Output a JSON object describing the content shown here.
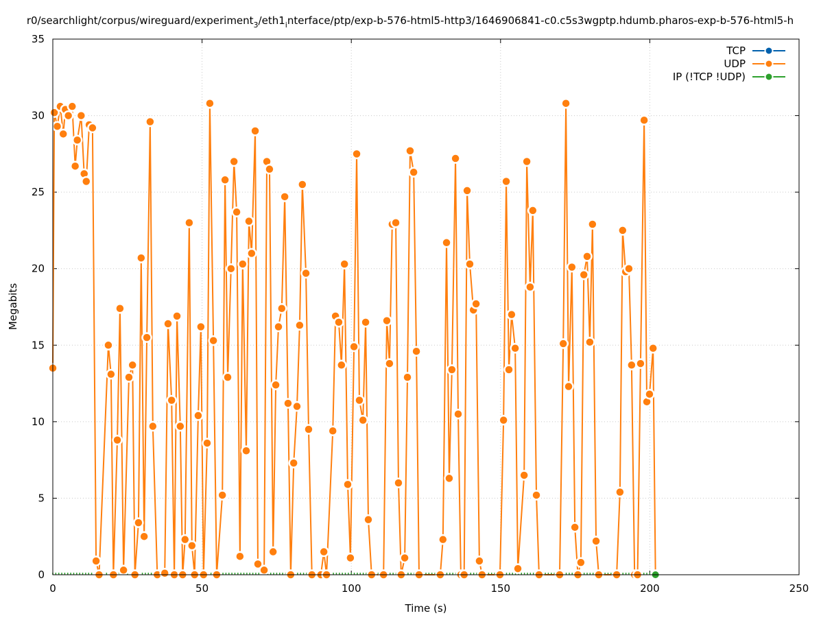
{
  "chart_data": {
    "type": "line",
    "title_parts": [
      "r0/searchlight/corpus/wireguard/experiment",
      "3",
      "/eth1",
      "i",
      "nterface/ptp/exp-b-576-html5-http3/1646906841-c0.c5s3wgptp.hdumb.pharos-exp-b-576-html5-h"
    ],
    "xlabel": "Time (s)",
    "ylabel": "Megabits",
    "xlim": [
      0,
      250
    ],
    "ylim": [
      0,
      35
    ],
    "xticks": [
      0,
      50,
      100,
      150,
      200,
      250
    ],
    "yticks": [
      0,
      5,
      10,
      15,
      20,
      25,
      30,
      35
    ],
    "grid": true,
    "legend_position": "top-right",
    "series": [
      {
        "name": "TCP",
        "color": "#0060ad",
        "points": []
      },
      {
        "name": "UDP",
        "color": "#ff7f0e",
        "points": [
          [
            0,
            13.5
          ],
          [
            0.5,
            30.2
          ],
          [
            1.5,
            29.3
          ],
          [
            2.5,
            30.6
          ],
          [
            3.5,
            28.8
          ],
          [
            4.2,
            30.4
          ],
          [
            5.2,
            30.0
          ],
          [
            6.5,
            30.6
          ],
          [
            7.5,
            26.7
          ],
          [
            8.2,
            28.4
          ],
          [
            9.5,
            30.0
          ],
          [
            10.5,
            26.2
          ],
          [
            11.2,
            25.7
          ],
          [
            12.2,
            29.4
          ],
          [
            13.3,
            29.2
          ],
          [
            14.5,
            0.9
          ],
          [
            15.5,
            0
          ],
          [
            18.6,
            15.0
          ],
          [
            19.5,
            13.1
          ],
          [
            20.3,
            0
          ],
          [
            21.6,
            8.8
          ],
          [
            22.5,
            17.4
          ],
          [
            23.7,
            0.3
          ],
          [
            25.5,
            12.9
          ],
          [
            26.7,
            13.7
          ],
          [
            27.5,
            0
          ],
          [
            28.7,
            3.4
          ],
          [
            29.6,
            20.7
          ],
          [
            30.6,
            2.5
          ],
          [
            31.5,
            15.5
          ],
          [
            32.6,
            29.6
          ],
          [
            33.5,
            9.7
          ],
          [
            35,
            0
          ],
          [
            37.5,
            0.1
          ],
          [
            38.6,
            16.4
          ],
          [
            39.8,
            11.4
          ],
          [
            40.7,
            0
          ],
          [
            41.6,
            16.9
          ],
          [
            42.7,
            9.7
          ],
          [
            43.5,
            0
          ],
          [
            44.3,
            2.3
          ],
          [
            45.7,
            23.0
          ],
          [
            46.6,
            1.9
          ],
          [
            47.5,
            0
          ],
          [
            48.7,
            10.4
          ],
          [
            49.6,
            16.2
          ],
          [
            50.5,
            0
          ],
          [
            51.7,
            8.6
          ],
          [
            52.6,
            30.8
          ],
          [
            53.8,
            15.3
          ],
          [
            54.9,
            0
          ],
          [
            56.8,
            5.2
          ],
          [
            57.7,
            25.8
          ],
          [
            58.6,
            12.9
          ],
          [
            59.7,
            20.0
          ],
          [
            60.7,
            27.0
          ],
          [
            61.6,
            23.7
          ],
          [
            62.7,
            1.2
          ],
          [
            63.6,
            20.3
          ],
          [
            64.8,
            8.1
          ],
          [
            65.7,
            23.1
          ],
          [
            66.6,
            21.0
          ],
          [
            67.8,
            29.0
          ],
          [
            68.7,
            0.7
          ],
          [
            70.8,
            0.3
          ],
          [
            71.7,
            27.0
          ],
          [
            72.6,
            26.5
          ],
          [
            73.8,
            1.5
          ],
          [
            74.7,
            12.4
          ],
          [
            75.6,
            16.2
          ],
          [
            76.7,
            17.4
          ],
          [
            77.7,
            24.7
          ],
          [
            78.8,
            11.2
          ],
          [
            79.7,
            0
          ],
          [
            80.7,
            7.3
          ],
          [
            81.8,
            11.0
          ],
          [
            82.7,
            16.3
          ],
          [
            83.6,
            25.5
          ],
          [
            84.8,
            19.7
          ],
          [
            85.7,
            9.5
          ],
          [
            86.8,
            0
          ],
          [
            89.8,
            0
          ],
          [
            90.8,
            1.5
          ],
          [
            91.7,
            0
          ],
          [
            93.8,
            9.4
          ],
          [
            94.7,
            16.9
          ],
          [
            95.8,
            16.5
          ],
          [
            96.7,
            13.7
          ],
          [
            97.7,
            20.3
          ],
          [
            98.8,
            5.9
          ],
          [
            99.7,
            1.1
          ],
          [
            100.9,
            14.9
          ],
          [
            101.8,
            27.5
          ],
          [
            102.7,
            11.4
          ],
          [
            103.9,
            10.1
          ],
          [
            104.8,
            16.5
          ],
          [
            105.7,
            3.6
          ],
          [
            106.8,
            0
          ],
          [
            110.8,
            0
          ],
          [
            111.9,
            16.6
          ],
          [
            112.8,
            13.8
          ],
          [
            113.7,
            22.9
          ],
          [
            114.9,
            23.0
          ],
          [
            115.8,
            6.0
          ],
          [
            116.7,
            0
          ],
          [
            117.9,
            1.1
          ],
          [
            118.8,
            12.9
          ],
          [
            119.7,
            27.7
          ],
          [
            120.9,
            26.3
          ],
          [
            121.8,
            14.6
          ],
          [
            122.7,
            0
          ],
          [
            129.8,
            0
          ],
          [
            130.7,
            2.3
          ],
          [
            131.9,
            21.7
          ],
          [
            132.8,
            6.3
          ],
          [
            133.7,
            13.4
          ],
          [
            134.9,
            27.2
          ],
          [
            135.8,
            10.5
          ],
          [
            136.7,
            0
          ],
          [
            137.8,
            0
          ],
          [
            138.8,
            25.1
          ],
          [
            139.7,
            20.3
          ],
          [
            140.9,
            17.3
          ],
          [
            141.8,
            17.7
          ],
          [
            142.9,
            0.9
          ],
          [
            143.8,
            0
          ],
          [
            149.8,
            0
          ],
          [
            151.0,
            10.1
          ],
          [
            151.9,
            25.7
          ],
          [
            152.8,
            13.4
          ],
          [
            153.7,
            17.0
          ],
          [
            154.9,
            14.8
          ],
          [
            155.8,
            0.4
          ],
          [
            157.9,
            6.5
          ],
          [
            158.8,
            27.0
          ],
          [
            159.9,
            18.8
          ],
          [
            160.8,
            23.8
          ],
          [
            162.0,
            5.2
          ],
          [
            162.9,
            0
          ],
          [
            169.8,
            0
          ],
          [
            171.0,
            15.1
          ],
          [
            171.9,
            30.8
          ],
          [
            172.8,
            12.3
          ],
          [
            173.9,
            20.1
          ],
          [
            174.9,
            3.1
          ],
          [
            175.9,
            0
          ],
          [
            176.9,
            0.8
          ],
          [
            177.9,
            19.6
          ],
          [
            179.0,
            20.8
          ],
          [
            179.9,
            15.2
          ],
          [
            180.8,
            22.9
          ],
          [
            182.0,
            2.2
          ],
          [
            182.9,
            0
          ],
          [
            188.9,
            0
          ],
          [
            190.0,
            5.4
          ],
          [
            190.9,
            22.5
          ],
          [
            191.9,
            19.8
          ],
          [
            193.0,
            20.0
          ],
          [
            193.9,
            13.7
          ],
          [
            194.9,
            0
          ],
          [
            195.9,
            0
          ],
          [
            196.9,
            13.8
          ],
          [
            198.1,
            29.7
          ],
          [
            199.0,
            11.3
          ],
          [
            199.9,
            11.8
          ],
          [
            201.1,
            14.8
          ],
          [
            201.9,
            0
          ]
        ]
      },
      {
        "name": "IP (!TCP  !UDP)",
        "color": "#2ca02c",
        "points": [
          [
            0,
            0
          ],
          [
            201.9,
            0
          ]
        ]
      }
    ]
  }
}
